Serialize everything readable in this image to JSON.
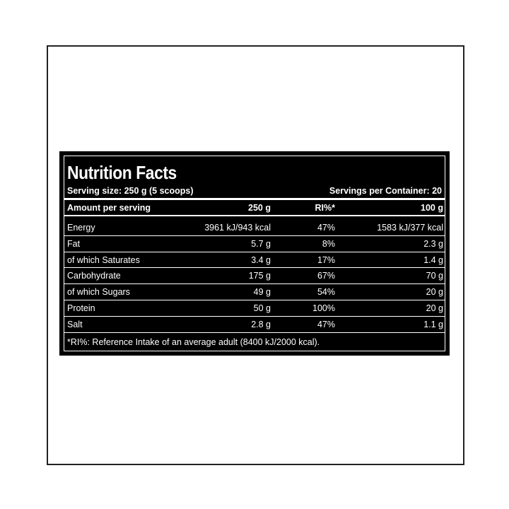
{
  "title": "Nutrition Facts",
  "serving_size": "Serving size: 250 g (5 scoops)",
  "servings_per_container": "Servings per Container: 20",
  "header": [
    "Amount per serving",
    "250 g",
    "RI%*",
    "100 g"
  ],
  "rows": [
    [
      "Energy",
      "3961 kJ/943 kcal",
      "47%",
      "1583 kJ/377 kcal"
    ],
    [
      "Fat",
      "5.7 g",
      "8%",
      "2.3 g"
    ],
    [
      "of which Saturates",
      "3.4 g",
      "17%",
      "1.4 g"
    ],
    [
      "Carbohydrate",
      "175 g",
      "67%",
      "70 g"
    ],
    [
      "of which Sugars",
      "49 g",
      "54%",
      "20 g"
    ],
    [
      "Protein",
      "50 g",
      "100%",
      "20 g"
    ],
    [
      "Salt",
      "2.8 g",
      "47%",
      "1.1 g"
    ]
  ],
  "footnote": "*RI%: Reference Intake of an average adult (8400 kJ/2000 kcal)."
}
